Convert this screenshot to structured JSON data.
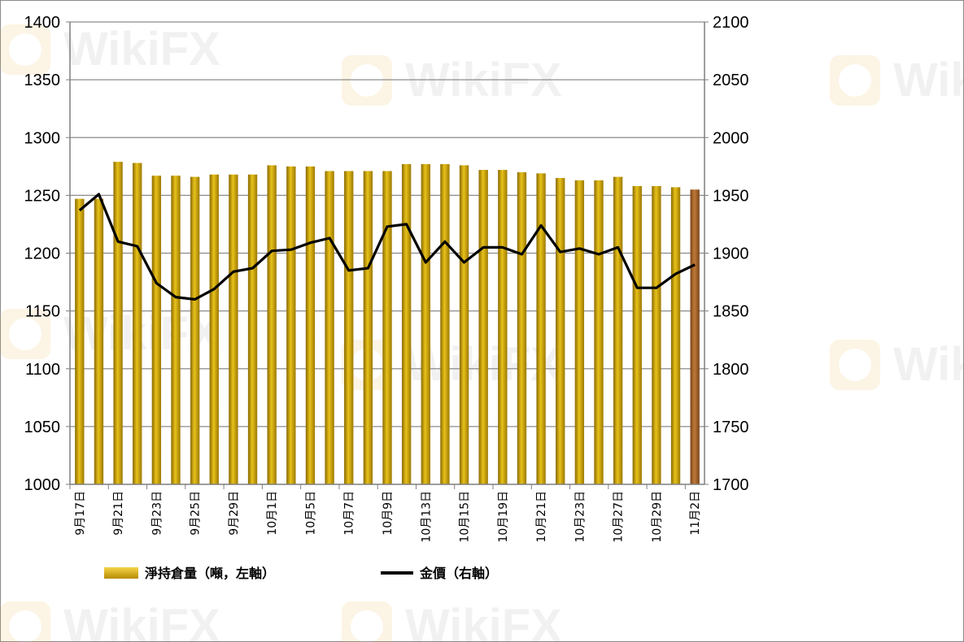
{
  "chart_data": {
    "type": "bar",
    "title": "",
    "x_labels": [
      "9月17日",
      "9月21日",
      "9月23日",
      "9月25日",
      "9月29日",
      "10月1日",
      "10月5日",
      "10月7日",
      "10月9日",
      "10月13日",
      "10月15日",
      "10月19日",
      "10月21日",
      "10月23日",
      "10月27日",
      "10月29日",
      "11月2日"
    ],
    "y_left": {
      "min": 1000,
      "max": 1400,
      "step": 50,
      "ticks": [
        "1000",
        "1050",
        "1100",
        "1150",
        "1200",
        "1250",
        "1300",
        "1350",
        "1400"
      ]
    },
    "y_right": {
      "min": 1700,
      "max": 2100,
      "step": 50,
      "ticks": [
        "1700",
        "1750",
        "1800",
        "1850",
        "1900",
        "1950",
        "2000",
        "2050",
        "2100"
      ]
    },
    "grid": true,
    "legend_position": "bottom",
    "series": [
      {
        "name": "淨持倉量（噸，左軸）",
        "kind": "bar",
        "axis": "left",
        "color": "#C9A000",
        "last_color": "#A0602A",
        "values": [
          1247,
          1247,
          1279,
          1278,
          1267,
          1267,
          1266,
          1268,
          1268,
          1268,
          1276,
          1275,
          1275,
          1271,
          1271,
          1271,
          1271,
          1277,
          1277,
          1277,
          1276,
          1272,
          1272,
          1270,
          1269,
          1265,
          1263,
          1263,
          1266,
          1258,
          1258,
          1257,
          1255
        ]
      },
      {
        "name": "金價（右軸）",
        "kind": "line",
        "axis": "right",
        "color": "#000000",
        "values": [
          1937,
          1951,
          1910,
          1906,
          1874,
          1862,
          1860,
          1869,
          1884,
          1887,
          1902,
          1903,
          1909,
          1913,
          1885,
          1887,
          1923,
          1925,
          1892,
          1910,
          1892,
          1905,
          1905,
          1899,
          1924,
          1901,
          1904,
          1899,
          1905,
          1870,
          1870,
          1882,
          1890
        ]
      }
    ]
  },
  "watermark": "WikiFX"
}
